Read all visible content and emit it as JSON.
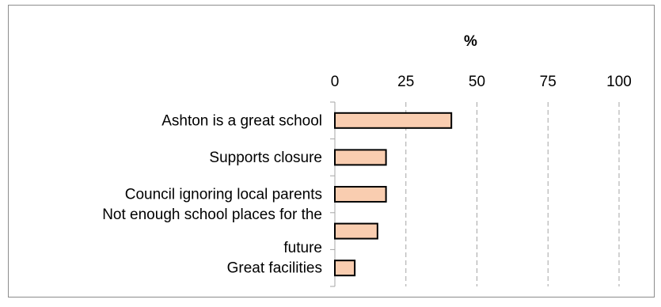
{
  "chart_data": {
    "type": "bar",
    "orientation": "horizontal",
    "title": "",
    "xlabel": "%",
    "ylabel": "",
    "xlim": [
      0,
      100
    ],
    "xticks": [
      0,
      25,
      50,
      75,
      100
    ],
    "xtick_labels": [
      "0",
      "25",
      "50",
      "75",
      "100"
    ],
    "grid": true,
    "legend": "none",
    "categories": [
      [
        "Ashton is a great school"
      ],
      [
        "Supports closure"
      ],
      [
        "Council ignoring local parents"
      ],
      [
        "Not enough school places for the",
        "future"
      ],
      [
        "Great facilities"
      ]
    ],
    "values": [
      41,
      18,
      18,
      15,
      7
    ],
    "colors": {
      "bar_fill": "#f9cdb0",
      "bar_stroke": "#000000",
      "grid": "#a6a6a6",
      "axis": "#a6a6a6"
    }
  }
}
